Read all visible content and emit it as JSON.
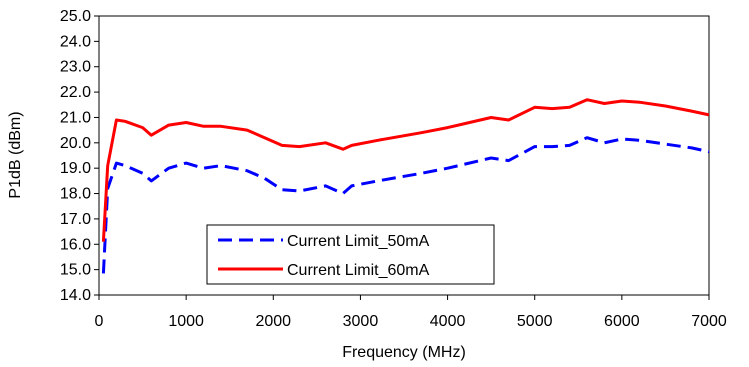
{
  "chart_data": {
    "type": "line",
    "xlabel": "Frequency (MHz)",
    "ylabel": "P1dB (dBm)",
    "xlim": [
      0,
      7000
    ],
    "ylim": [
      14.0,
      25.0
    ],
    "x_ticks": [
      "0",
      "1000",
      "2000",
      "3000",
      "4000",
      "5000",
      "6000",
      "7000"
    ],
    "y_ticks": [
      "14.0",
      "15.0",
      "16.0",
      "17.0",
      "18.0",
      "19.0",
      "20.0",
      "21.0",
      "22.0",
      "23.0",
      "24.0",
      "25.0"
    ],
    "grid": false,
    "legend_position": "lower-center",
    "series": [
      {
        "name": "Current Limit_50mA",
        "color": "#0000ff",
        "style": "dashed",
        "points": [
          [
            50,
            14.85
          ],
          [
            100,
            18.2
          ],
          [
            200,
            19.2
          ],
          [
            300,
            19.1
          ],
          [
            500,
            18.8
          ],
          [
            600,
            18.5
          ],
          [
            800,
            19.0
          ],
          [
            1000,
            19.2
          ],
          [
            1200,
            19.0
          ],
          [
            1400,
            19.1
          ],
          [
            1700,
            18.9
          ],
          [
            1900,
            18.6
          ],
          [
            2100,
            18.15
          ],
          [
            2300,
            18.1
          ],
          [
            2600,
            18.3
          ],
          [
            2800,
            18.0
          ],
          [
            2900,
            18.3
          ],
          [
            3200,
            18.5
          ],
          [
            3700,
            18.8
          ],
          [
            4000,
            19.0
          ],
          [
            4500,
            19.4
          ],
          [
            4700,
            19.3
          ],
          [
            5000,
            19.85
          ],
          [
            5200,
            19.85
          ],
          [
            5400,
            19.9
          ],
          [
            5600,
            20.2
          ],
          [
            5800,
            20.0
          ],
          [
            6000,
            20.15
          ],
          [
            6200,
            20.1
          ],
          [
            6500,
            19.95
          ],
          [
            6800,
            19.8
          ],
          [
            7000,
            19.65
          ]
        ]
      },
      {
        "name": "Current Limit_60mA",
        "color": "#ff0000",
        "style": "solid",
        "points": [
          [
            50,
            16.1
          ],
          [
            100,
            19.1
          ],
          [
            200,
            20.9
          ],
          [
            300,
            20.85
          ],
          [
            500,
            20.6
          ],
          [
            600,
            20.3
          ],
          [
            800,
            20.7
          ],
          [
            1000,
            20.8
          ],
          [
            1200,
            20.65
          ],
          [
            1400,
            20.65
          ],
          [
            1700,
            20.5
          ],
          [
            1900,
            20.2
          ],
          [
            2100,
            19.9
          ],
          [
            2300,
            19.85
          ],
          [
            2600,
            20.0
          ],
          [
            2800,
            19.75
          ],
          [
            2900,
            19.9
          ],
          [
            3200,
            20.1
          ],
          [
            3700,
            20.4
          ],
          [
            4000,
            20.6
          ],
          [
            4500,
            21.0
          ],
          [
            4700,
            20.9
          ],
          [
            5000,
            21.4
          ],
          [
            5200,
            21.35
          ],
          [
            5400,
            21.4
          ],
          [
            5600,
            21.7
          ],
          [
            5800,
            21.55
          ],
          [
            6000,
            21.65
          ],
          [
            6200,
            21.6
          ],
          [
            6500,
            21.45
          ],
          [
            6800,
            21.25
          ],
          [
            7000,
            21.1
          ]
        ]
      }
    ]
  }
}
